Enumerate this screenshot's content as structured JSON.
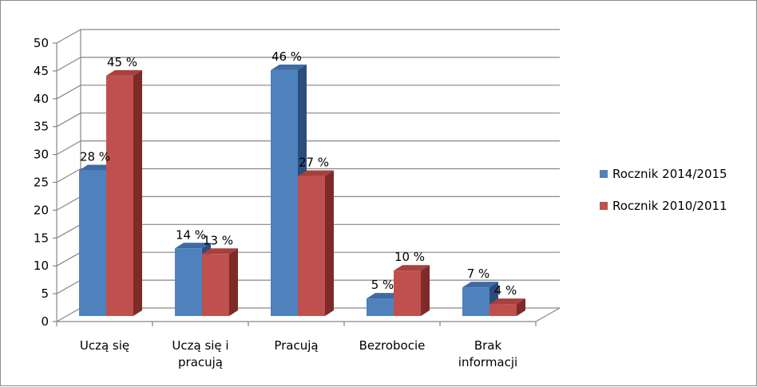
{
  "chart_data": {
    "type": "bar",
    "categories": [
      [
        "Uczą się"
      ],
      [
        "Uczą się i",
        "pracują"
      ],
      [
        "Pracują"
      ],
      [
        "Bezrobocie"
      ],
      [
        "Brak",
        "informacji"
      ]
    ],
    "series": [
      {
        "name": "Rocznik 2014/2015",
        "color": "#4f81bd",
        "top_color": "#3d6ba4",
        "side_color": "#2c4d7c",
        "values": [
          28,
          14,
          46,
          5,
          7
        ],
        "labels": [
          "28 %",
          "14 %",
          "46 %",
          "5 %",
          "7 %"
        ]
      },
      {
        "name": "Rocznik 2010/2011",
        "color": "#c0504d",
        "top_color": "#a8403d",
        "side_color": "#7d2b29",
        "values": [
          45,
          13,
          27,
          10,
          4
        ],
        "labels": [
          "45 %",
          "13 %",
          "27 %",
          "10 %",
          "4 %"
        ]
      }
    ],
    "y_ticks": [
      "0",
      "5",
      "10",
      "15",
      "20",
      "25",
      "30",
      "35",
      "40",
      "45",
      "50"
    ],
    "ylim": [
      0,
      50
    ],
    "grid": true,
    "three_d": true,
    "legend_position": "right"
  }
}
